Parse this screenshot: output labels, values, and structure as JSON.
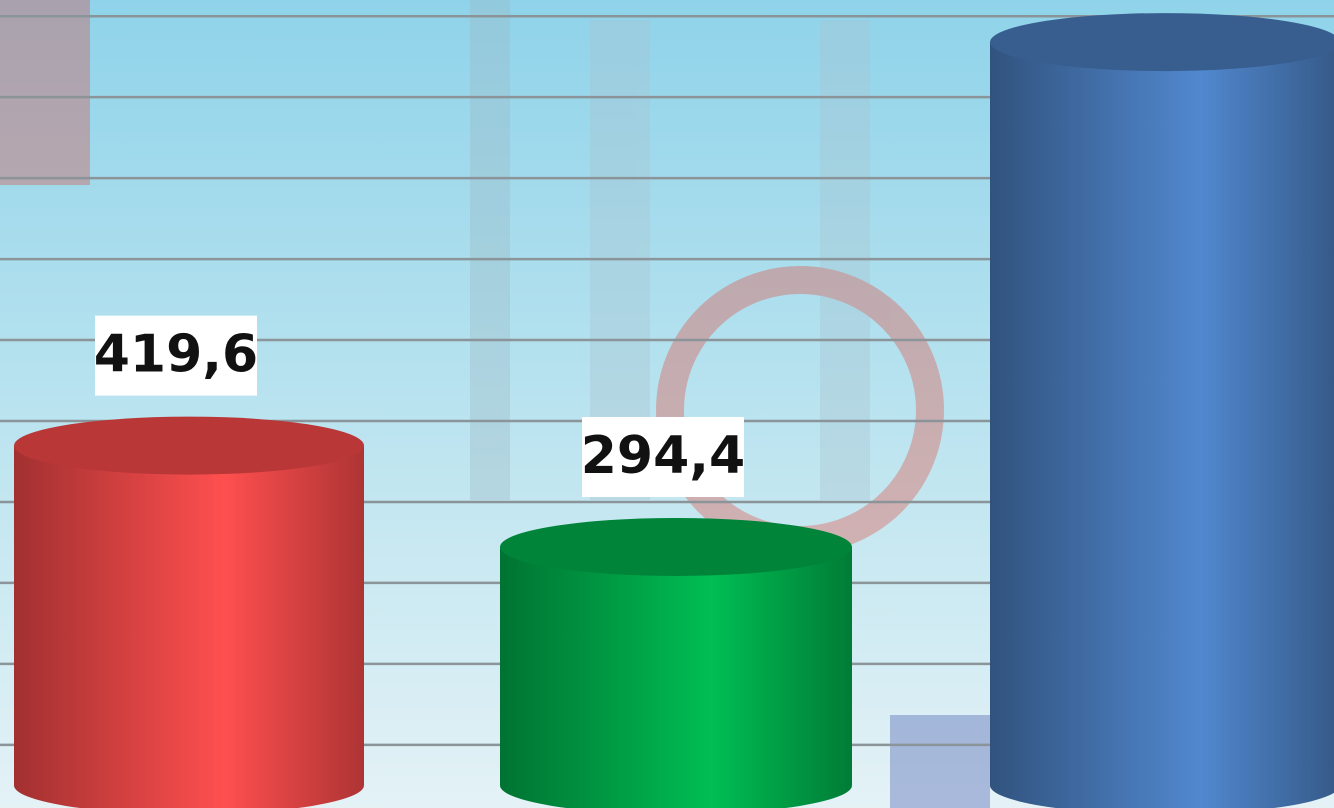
{
  "chart_data": {
    "type": "cylinder-bar",
    "categories": [
      null,
      null,
      null
    ],
    "values": [
      419.6,
      294.4,
      918
    ],
    "value_labels": [
      "419,6",
      "294,4",
      null
    ],
    "colors": [
      "#e84545",
      "#00a548",
      "#4676b4"
    ],
    "ylim": [
      -28,
      970
    ],
    "yticks": [
      50,
      150,
      250,
      350,
      450,
      550,
      650,
      750,
      850,
      950
    ],
    "grid": true
  }
}
